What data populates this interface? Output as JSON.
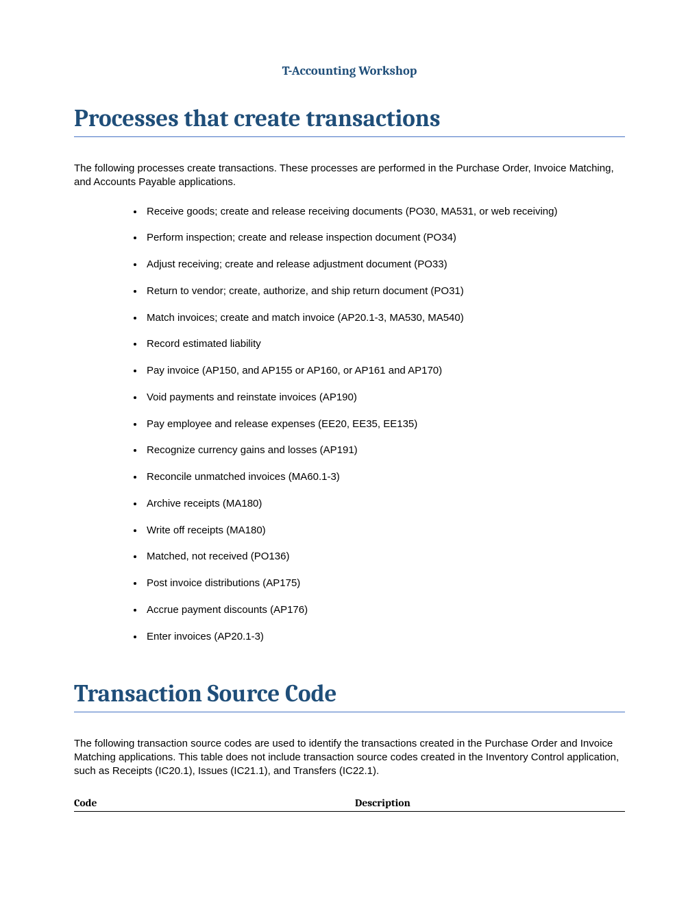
{
  "header": {
    "workshop_title": "T-Accounting Workshop",
    "title_color": "#1f4e79"
  },
  "section1": {
    "heading": "Processes that create transactions",
    "heading_color": "#1f4e79",
    "underline_color": "#4472c4",
    "intro": "The following processes create transactions. These processes are performed in the Purchase Order, Invoice Matching, and Accounts Payable applications.",
    "bullets": [
      "Receive goods; create and release receiving documents (PO30, MA531, or web receiving)",
      "Perform inspection; create and release inspection document (PO34)",
      "Adjust receiving; create and release adjustment document (PO33)",
      "Return to vendor; create, authorize, and ship return document (PO31)",
      "Match invoices; create and match invoice (AP20.1-3, MA530, MA540)",
      "Record estimated liability",
      "Pay invoice (AP150, and AP155 or AP160, or AP161 and AP170)",
      "Void payments and reinstate invoices (AP190)",
      "Pay employee and release expenses (EE20, EE35, EE135)",
      "Recognize currency gains and losses (AP191)",
      "Reconcile unmatched invoices (MA60.1-3)",
      "Archive receipts (MA180)",
      "Write off receipts (MA180)",
      "Matched, not received (PO136)",
      "Post invoice distributions (AP175)",
      "Accrue payment discounts (AP176)",
      "Enter invoices (AP20.1-3)"
    ]
  },
  "section2": {
    "heading": "Transaction Source Code",
    "heading_color": "#1f4e79",
    "underline_color": "#4472c4",
    "intro": "The following transaction source codes are used to identify the transactions created in the Purchase Order and Invoice Matching applications. This table does not include transaction source codes created in the Inventory Control application, such as Receipts (IC20.1), Issues (IC21.1), and Transfers (IC22.1).",
    "table": {
      "columns": [
        "Code",
        "Description"
      ]
    }
  }
}
